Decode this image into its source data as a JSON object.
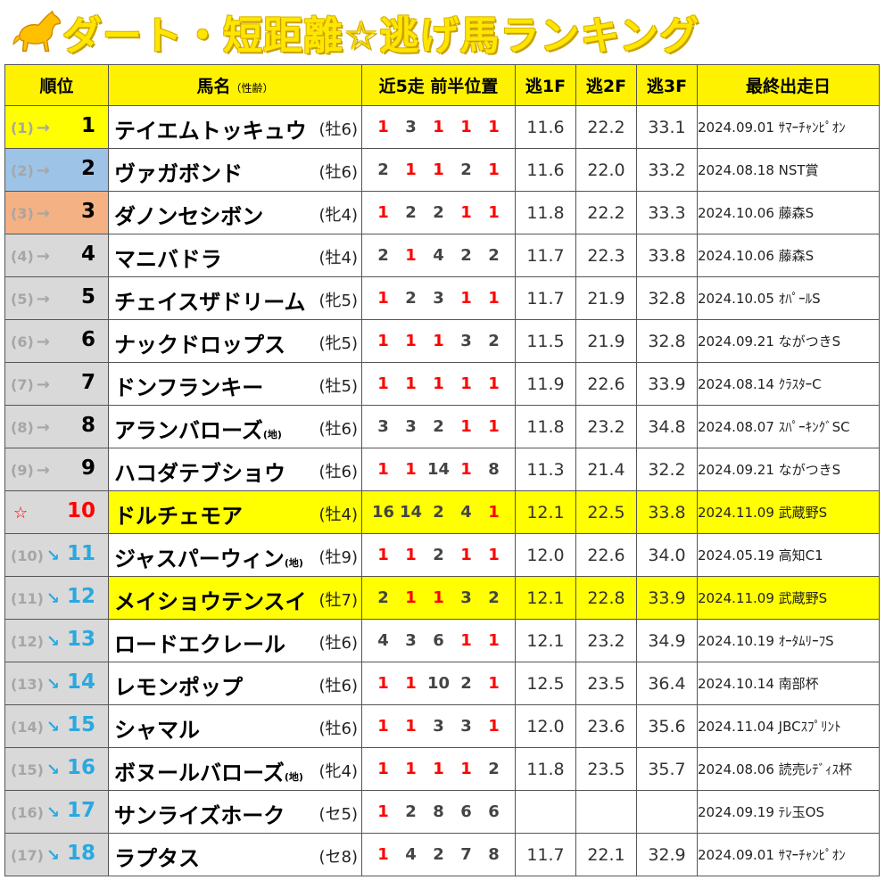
{
  "title": "ダート・短距離☆逃げ馬ランキング",
  "colors": {
    "title": "#ffe600",
    "header_bg": "#fff200",
    "highlight": "#ffff00",
    "up_arrow": "#a6a6a6",
    "down_arrow": "#2aa8e0",
    "first_place": "#ff0000"
  },
  "headers": {
    "rank": "順位",
    "name": "馬名",
    "name_sub": "（性齢）",
    "positions": "近5走 前半位置",
    "f1": "逃1F",
    "f2": "逃2F",
    "f3": "逃3F",
    "last_race": "最終出走日"
  },
  "rows": [
    {
      "prev": "(1)",
      "arrow": "→",
      "rank": "1",
      "name": "テイエムトッキュウ",
      "chi": "",
      "sex_age": "(牡6)",
      "pos": [
        "1",
        "3",
        "1",
        "1",
        "1"
      ],
      "f1": "11.6",
      "f2": "22.2",
      "f3": "33.1",
      "last": "2024.09.01 ｻﾏｰﾁｬﾝﾋﾟｵﾝ"
    },
    {
      "prev": "(2)",
      "arrow": "→",
      "rank": "2",
      "name": "ヴァガボンド",
      "chi": "",
      "sex_age": "(牡6)",
      "pos": [
        "2",
        "1",
        "1",
        "2",
        "1"
      ],
      "f1": "11.6",
      "f2": "22.0",
      "f3": "33.2",
      "last": "2024.08.18 NST賞"
    },
    {
      "prev": "(3)",
      "arrow": "→",
      "rank": "3",
      "name": "ダノンセシボン",
      "chi": "",
      "sex_age": "(牝4)",
      "pos": [
        "1",
        "2",
        "2",
        "1",
        "1"
      ],
      "f1": "11.8",
      "f2": "22.2",
      "f3": "33.3",
      "last": "2024.10.06 藤森S"
    },
    {
      "prev": "(4)",
      "arrow": "→",
      "rank": "4",
      "name": "マニバドラ",
      "chi": "",
      "sex_age": "(牡4)",
      "pos": [
        "2",
        "1",
        "4",
        "2",
        "2"
      ],
      "f1": "11.7",
      "f2": "22.3",
      "f3": "33.8",
      "last": "2024.10.06 藤森S"
    },
    {
      "prev": "(5)",
      "arrow": "→",
      "rank": "5",
      "name": "チェイスザドリーム",
      "chi": "",
      "sex_age": "(牝5)",
      "pos": [
        "1",
        "2",
        "3",
        "1",
        "1"
      ],
      "f1": "11.7",
      "f2": "21.9",
      "f3": "32.8",
      "last": "2024.10.05 ｵﾊﾟｰﾙS"
    },
    {
      "prev": "(6)",
      "arrow": "→",
      "rank": "6",
      "name": "ナックドロップス",
      "chi": "",
      "sex_age": "(牝5)",
      "pos": [
        "1",
        "1",
        "1",
        "3",
        "2"
      ],
      "f1": "11.5",
      "f2": "21.9",
      "f3": "32.8",
      "last": "2024.09.21 ながつきS"
    },
    {
      "prev": "(7)",
      "arrow": "→",
      "rank": "7",
      "name": "ドンフランキー",
      "chi": "",
      "sex_age": "(牡5)",
      "pos": [
        "1",
        "1",
        "1",
        "1",
        "1"
      ],
      "f1": "11.9",
      "f2": "22.6",
      "f3": "33.9",
      "last": "2024.08.14 ｸﾗｽﾀｰC"
    },
    {
      "prev": "(8)",
      "arrow": "→",
      "rank": "8",
      "name": "アランバローズ",
      "chi": "(地)",
      "sex_age": "(牡6)",
      "pos": [
        "3",
        "3",
        "2",
        "1",
        "1"
      ],
      "f1": "11.8",
      "f2": "23.2",
      "f3": "34.8",
      "last": "2024.08.07 ｽﾊﾟｰｷﾝｸﾞSC"
    },
    {
      "prev": "(9)",
      "arrow": "→",
      "rank": "9",
      "name": "ハコダテブショウ",
      "chi": "",
      "sex_age": "(牡6)",
      "pos": [
        "1",
        "1",
        "14",
        "1",
        "8"
      ],
      "f1": "11.3",
      "f2": "21.4",
      "f3": "32.2",
      "last": "2024.09.21 ながつきS"
    },
    {
      "prev": "",
      "arrow": "☆",
      "rank": "10",
      "name": "ドルチェモア",
      "chi": "",
      "sex_age": "(牡4)",
      "pos": [
        "16",
        "14",
        "2",
        "4",
        "1"
      ],
      "f1": "12.1",
      "f2": "22.5",
      "f3": "33.8",
      "last": "2024.11.09 武蔵野S"
    },
    {
      "prev": "(10)",
      "arrow": "↘",
      "rank": "11",
      "name": "ジャスパーウィン",
      "chi": "(地)",
      "sex_age": "(牡9)",
      "pos": [
        "1",
        "1",
        "2",
        "1",
        "1"
      ],
      "f1": "12.0",
      "f2": "22.6",
      "f3": "34.0",
      "last": "2024.05.19 高知C1"
    },
    {
      "prev": "(11)",
      "arrow": "↘",
      "rank": "12",
      "name": "メイショウテンスイ",
      "chi": "",
      "sex_age": "(牡7)",
      "pos": [
        "2",
        "1",
        "1",
        "3",
        "2"
      ],
      "f1": "12.1",
      "f2": "22.8",
      "f3": "33.9",
      "last": "2024.11.09 武蔵野S"
    },
    {
      "prev": "(12)",
      "arrow": "↘",
      "rank": "13",
      "name": "ロードエクレール",
      "chi": "",
      "sex_age": "(牡6)",
      "pos": [
        "4",
        "3",
        "6",
        "1",
        "1"
      ],
      "f1": "12.1",
      "f2": "23.2",
      "f3": "34.9",
      "last": "2024.10.19 ｵｰﾀﾑﾘｰﾌS"
    },
    {
      "prev": "(13)",
      "arrow": "↘",
      "rank": "14",
      "name": "レモンポップ",
      "chi": "",
      "sex_age": "(牡6)",
      "pos": [
        "1",
        "1",
        "10",
        "2",
        "1"
      ],
      "f1": "12.5",
      "f2": "23.5",
      "f3": "36.4",
      "last": "2024.10.14 南部杯"
    },
    {
      "prev": "(14)",
      "arrow": "↘",
      "rank": "15",
      "name": "シャマル",
      "chi": "",
      "sex_age": "(牡6)",
      "pos": [
        "1",
        "1",
        "3",
        "3",
        "1"
      ],
      "f1": "12.0",
      "f2": "23.6",
      "f3": "35.6",
      "last": "2024.11.04 JBCｽﾌﾟﾘﾝﾄ"
    },
    {
      "prev": "(15)",
      "arrow": "↘",
      "rank": "16",
      "name": "ボヌールバローズ",
      "chi": "(地)",
      "sex_age": "(牝4)",
      "pos": [
        "1",
        "1",
        "1",
        "1",
        "2"
      ],
      "f1": "11.8",
      "f2": "23.5",
      "f3": "35.7",
      "last": "2024.08.06 読売ﾚﾃﾞｨｽ杯"
    },
    {
      "prev": "(16)",
      "arrow": "↘",
      "rank": "17",
      "name": "サンライズホーク",
      "chi": "",
      "sex_age": "(セ5)",
      "pos": [
        "1",
        "2",
        "8",
        "6",
        "6"
      ],
      "f1": "",
      "f2": "",
      "f3": "",
      "last": "2024.09.19 ﾃﾚ玉OS"
    },
    {
      "prev": "(17)",
      "arrow": "↘",
      "rank": "18",
      "name": "ラプタス",
      "chi": "",
      "sex_age": "(セ8)",
      "pos": [
        "1",
        "4",
        "2",
        "7",
        "8"
      ],
      "f1": "11.7",
      "f2": "22.1",
      "f3": "32.9",
      "last": "2024.09.01 ｻﾏｰﾁｬﾝﾋﾟｵﾝ"
    }
  ]
}
